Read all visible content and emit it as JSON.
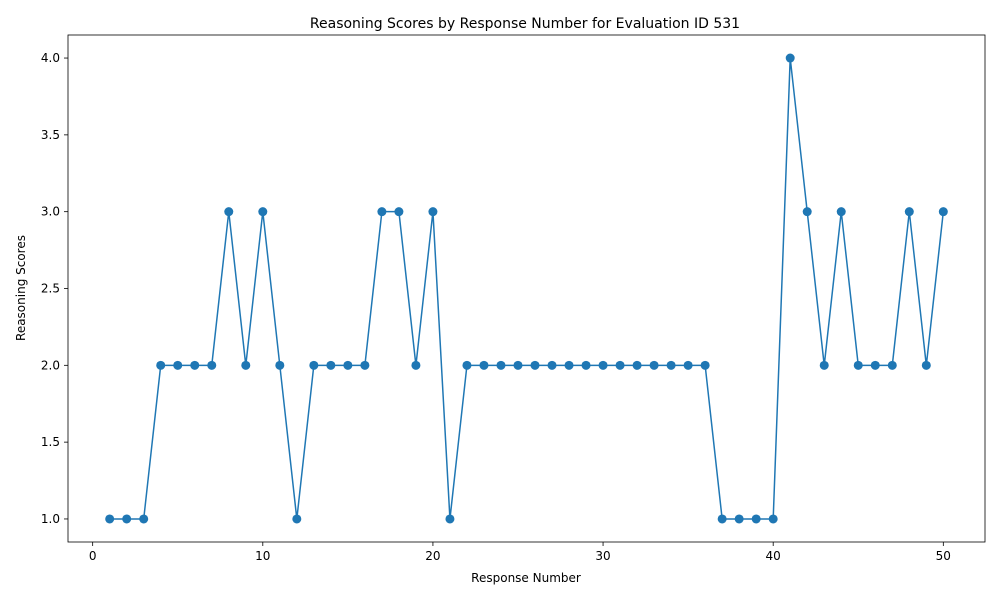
{
  "chart_data": {
    "type": "line",
    "title": "Reasoning Scores by Response Number for Evaluation ID 531",
    "xlabel": "Response Number",
    "ylabel": "Reasoning Scores",
    "xlim": [
      -1.45,
      52.45
    ],
    "ylim": [
      0.85,
      4.15
    ],
    "xticks": [
      0,
      10,
      20,
      30,
      40,
      50
    ],
    "xtick_labels": [
      "0",
      "10",
      "20",
      "30",
      "40",
      "50"
    ],
    "yticks": [
      1.0,
      1.5,
      2.0,
      2.5,
      3.0,
      3.5,
      4.0
    ],
    "ytick_labels": [
      "1.0",
      "1.5",
      "2.0",
      "2.5",
      "3.0",
      "3.5",
      "4.0"
    ],
    "grid": false,
    "marker": "circle",
    "color": "#1f77b4",
    "series": [
      {
        "name": "Reasoning Scores",
        "x": [
          1,
          2,
          3,
          4,
          5,
          6,
          7,
          8,
          9,
          10,
          11,
          12,
          13,
          14,
          15,
          16,
          17,
          18,
          19,
          20,
          21,
          22,
          23,
          24,
          25,
          26,
          27,
          28,
          29,
          30,
          31,
          32,
          33,
          34,
          35,
          36,
          37,
          38,
          39,
          40,
          41,
          42,
          43,
          44,
          45,
          46,
          47,
          48,
          49,
          50
        ],
        "values": [
          1,
          1,
          1,
          2,
          2,
          2,
          2,
          3,
          2,
          3,
          2,
          1,
          2,
          2,
          2,
          2,
          3,
          3,
          2,
          3,
          1,
          2,
          2,
          2,
          2,
          2,
          2,
          2,
          2,
          2,
          2,
          2,
          2,
          2,
          2,
          2,
          1,
          1,
          1,
          1,
          4,
          3,
          2,
          3,
          2,
          2,
          2,
          3,
          2,
          3
        ]
      }
    ]
  }
}
